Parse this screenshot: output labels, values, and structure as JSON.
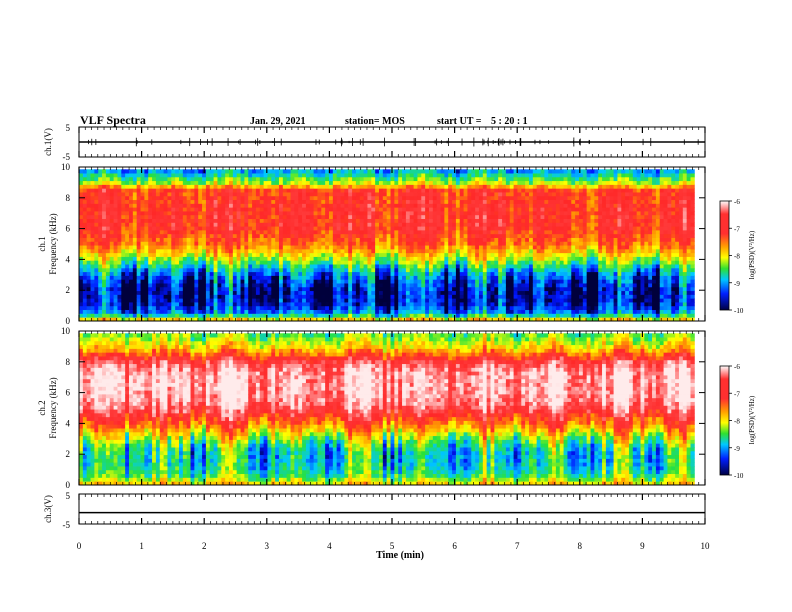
{
  "header": {
    "title": "VLF Spectra",
    "date": "Jan. 29, 2021",
    "station": "station= MOS",
    "start_label": "start  UT =",
    "start_time": "5 : 20 : 1"
  },
  "chart_data": {
    "type": "heatmap",
    "xlabel": "Time  (min)",
    "xlim": [
      0,
      10
    ],
    "xticks": [
      "0",
      "1",
      "2",
      "3",
      "4",
      "5",
      "6",
      "7",
      "8",
      "9",
      "10"
    ],
    "panels": [
      {
        "id": "ch1-waveform",
        "type": "line",
        "ylabel": "ch.1(V)",
        "ylim": [
          -5,
          5
        ],
        "yticks": [
          "5",
          "-5"
        ],
        "baseline_value": 0
      },
      {
        "id": "ch1-spectrogram",
        "type": "heatmap",
        "ylabel_line1": "ch.1",
        "ylabel_line2": "Frequency (kHz)",
        "ylim": [
          0,
          10
        ],
        "yticks": [
          "0",
          "2",
          "4",
          "6",
          "8",
          "10"
        ],
        "colorbar": {
          "label": "log(PSD)(V²/Hz)",
          "ticks": [
            "-6",
            "-7",
            "-8",
            "-9",
            "-10"
          ],
          "range": [
            -10,
            -6
          ]
        },
        "profile_freq_khz": [
          0,
          0.5,
          1,
          1.5,
          2,
          2.5,
          3,
          3.5,
          4,
          4.5,
          5,
          5.5,
          6,
          6.5,
          7,
          7.5,
          8,
          8.5,
          9,
          9.5,
          10
        ],
        "profile_log_psd": [
          -7.5,
          -9.2,
          -9.6,
          -9.8,
          -9.8,
          -9.6,
          -9.3,
          -8.8,
          -8.2,
          -7.7,
          -7.3,
          -7.1,
          -6.9,
          -6.9,
          -6.9,
          -6.9,
          -7.0,
          -7.0,
          -8.2,
          -8.8,
          -9.4
        ]
      },
      {
        "id": "ch2-spectrogram",
        "type": "heatmap",
        "ylabel_line1": "ch.2",
        "ylabel_line2": "Frequency (kHz)",
        "ylim": [
          0,
          10
        ],
        "yticks": [
          "0",
          "2",
          "4",
          "6",
          "8",
          "10"
        ],
        "colorbar": {
          "label": "log(PSD)(V²/Hz)",
          "ticks": [
            "-6",
            "-7",
            "-8",
            "-9",
            "-10"
          ],
          "range": [
            -10,
            -6
          ]
        },
        "profile_freq_khz": [
          0,
          0.5,
          1,
          1.5,
          2,
          2.5,
          3,
          3.5,
          4,
          4.5,
          5,
          5.5,
          6,
          6.5,
          7,
          7.5,
          8,
          8.5,
          9,
          9.5,
          10
        ],
        "profile_log_psd": [
          -7.6,
          -8.4,
          -8.7,
          -8.8,
          -8.8,
          -8.6,
          -8.2,
          -7.7,
          -7.2,
          -6.8,
          -6.4,
          -6.2,
          -6.1,
          -6.1,
          -6.1,
          -6.2,
          -6.5,
          -7.2,
          -7.8,
          -8.2,
          -8.5
        ]
      },
      {
        "id": "ch3-waveform",
        "type": "line",
        "ylabel": "ch.3(V)",
        "ylim": [
          -5,
          5
        ],
        "yticks": [
          "5",
          "-5"
        ],
        "baseline_value": -1.2
      }
    ]
  }
}
